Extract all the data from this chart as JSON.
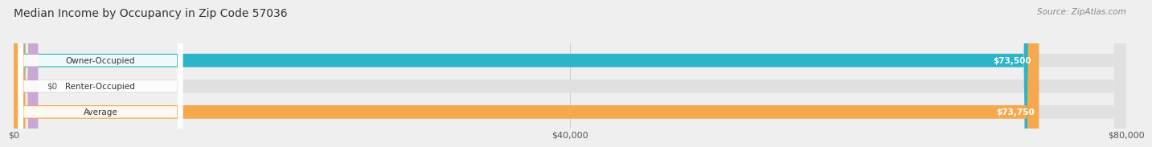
{
  "title": "Median Income by Occupancy in Zip Code 57036",
  "source": "Source: ZipAtlas.com",
  "categories": [
    "Owner-Occupied",
    "Renter-Occupied",
    "Average"
  ],
  "values": [
    73500,
    0,
    73750
  ],
  "bar_colors": [
    "#2bb5c8",
    "#c9a8d4",
    "#f5a94e"
  ],
  "value_labels": [
    "$73,500",
    "$0",
    "$73,750"
  ],
  "xlim": [
    0,
    80000
  ],
  "xticks": [
    0,
    40000,
    80000
  ],
  "xtick_labels": [
    "$0",
    "$40,000",
    "$80,000"
  ],
  "bg_color": "#efefef",
  "bar_bg_color": "#e0e0e0",
  "title_fontsize": 10,
  "source_fontsize": 7.5,
  "bar_height": 0.52
}
